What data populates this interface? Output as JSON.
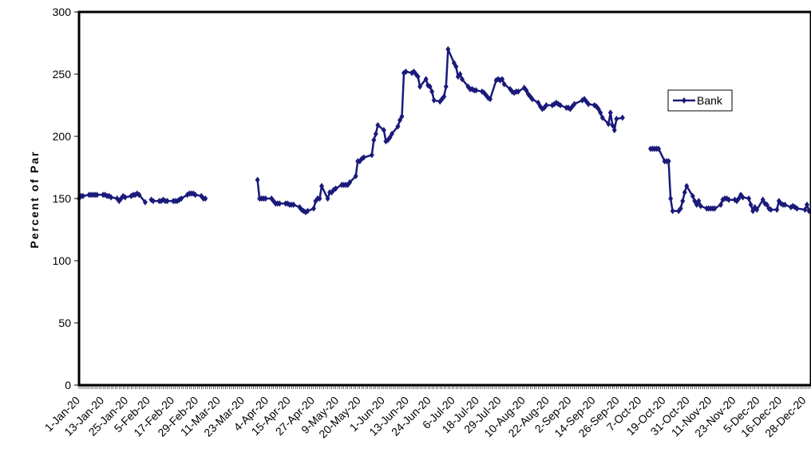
{
  "chart_data": {
    "type": "line",
    "ylabel": "Percent of Par",
    "xlabel": "",
    "ylim": [
      0,
      300
    ],
    "yticks": [
      0,
      50,
      100,
      150,
      200,
      250,
      300
    ],
    "xlim": [
      "2020-01-01",
      "2020-12-31"
    ],
    "xtick_labels": [
      "1-Jan-20",
      "13-Jan-20",
      "25-Jan-20",
      "5-Feb-20",
      "17-Feb-20",
      "29-Feb-20",
      "11-Mar-20",
      "23-Mar-20",
      "4-Apr-20",
      "15-Apr-20",
      "27-Apr-20",
      "9-May-20",
      "20-May-20",
      "1-Jun-20",
      "13-Jun-20",
      "24-Jun-20",
      "6-Jul-20",
      "18-Jul-20",
      "29-Jul-20",
      "10-Aug-20",
      "22-Aug-20",
      "2-Sep-20",
      "14-Sep-20",
      "26-Sep-20",
      "7-Oct-20",
      "19-Oct-20",
      "31-Oct-20",
      "11-Nov-20",
      "23-Nov-20",
      "5-Dec-20",
      "16-Dec-20",
      "28-Dec-20"
    ],
    "legend": {
      "position": "right",
      "entries": [
        "Bank"
      ]
    },
    "series": [
      {
        "name": "Bank",
        "color": "#1a1a7a",
        "segments": [
          [
            [
              "2020-01-01",
              150
            ],
            [
              "2020-01-02",
              152
            ],
            [
              "2020-01-03",
              152
            ],
            [
              "2020-01-06",
              153
            ],
            [
              "2020-01-07",
              153
            ],
            [
              "2020-01-08",
              153
            ],
            [
              "2020-01-09",
              153
            ],
            [
              "2020-01-10",
              153
            ],
            [
              "2020-01-13",
              153
            ],
            [
              "2020-01-14",
              153
            ],
            [
              "2020-01-15",
              152
            ],
            [
              "2020-01-16",
              152
            ],
            [
              "2020-01-17",
              151
            ],
            [
              "2020-01-20",
              150
            ],
            [
              "2020-01-21",
              148
            ],
            [
              "2020-01-22",
              150
            ],
            [
              "2020-01-23",
              152
            ],
            [
              "2020-01-24",
              151
            ],
            [
              "2020-01-27",
              152
            ],
            [
              "2020-01-28",
              153
            ],
            [
              "2020-01-29",
              153
            ],
            [
              "2020-01-30",
              154
            ],
            [
              "2020-01-31",
              153
            ],
            [
              "2020-02-03",
              147
            ]
          ],
          [
            [
              "2020-02-06",
              149
            ],
            [
              "2020-02-07",
              148
            ],
            [
              "2020-02-10",
              148
            ],
            [
              "2020-02-11",
              148
            ],
            [
              "2020-02-12",
              149
            ],
            [
              "2020-02-13",
              148
            ],
            [
              "2020-02-14",
              148
            ],
            [
              "2020-02-17",
              148
            ],
            [
              "2020-02-18",
              148
            ],
            [
              "2020-02-19",
              148
            ],
            [
              "2020-02-20",
              149
            ],
            [
              "2020-02-21",
              150
            ],
            [
              "2020-02-24",
              153
            ],
            [
              "2020-02-25",
              154
            ],
            [
              "2020-02-26",
              154
            ],
            [
              "2020-02-27",
              154
            ],
            [
              "2020-02-28",
              153
            ],
            [
              "2020-03-02",
              152
            ],
            [
              "2020-03-03",
              150
            ],
            [
              "2020-03-04",
              150
            ]
          ],
          [
            [
              "2020-03-30",
              165
            ],
            [
              "2020-03-31",
              150
            ],
            [
              "2020-04-01",
              150
            ],
            [
              "2020-04-02",
              150
            ],
            [
              "2020-04-03",
              150
            ],
            [
              "2020-04-06",
              150
            ],
            [
              "2020-04-07",
              148
            ],
            [
              "2020-04-08",
              146
            ],
            [
              "2020-04-09",
              146
            ],
            [
              "2020-04-10",
              146
            ],
            [
              "2020-04-13",
              146
            ],
            [
              "2020-04-14",
              146
            ],
            [
              "2020-04-15",
              145
            ],
            [
              "2020-04-16",
              145
            ],
            [
              "2020-04-17",
              145
            ],
            [
              "2020-04-20",
              143
            ],
            [
              "2020-04-21",
              141
            ],
            [
              "2020-04-22",
              140
            ],
            [
              "2020-04-23",
              139
            ],
            [
              "2020-04-24",
              140
            ],
            [
              "2020-04-27",
              142
            ],
            [
              "2020-04-28",
              148
            ],
            [
              "2020-04-29",
              150
            ],
            [
              "2020-04-30",
              150
            ],
            [
              "2020-05-01",
              160
            ],
            [
              "2020-05-04",
              150
            ],
            [
              "2020-05-05",
              155
            ],
            [
              "2020-05-06",
              155
            ],
            [
              "2020-05-07",
              157
            ],
            [
              "2020-05-08",
              158
            ],
            [
              "2020-05-11",
              161
            ],
            [
              "2020-05-12",
              161
            ],
            [
              "2020-05-13",
              161
            ],
            [
              "2020-05-14",
              161
            ],
            [
              "2020-05-15",
              163
            ],
            [
              "2020-05-18",
              168
            ],
            [
              "2020-05-19",
              180
            ],
            [
              "2020-05-20",
              180
            ],
            [
              "2020-05-21",
              182
            ],
            [
              "2020-05-22",
              183
            ],
            [
              "2020-05-26",
              185
            ],
            [
              "2020-05-27",
              197
            ],
            [
              "2020-05-28",
              202
            ],
            [
              "2020-05-29",
              209
            ],
            [
              "2020-06-01",
              205
            ],
            [
              "2020-06-02",
              196
            ],
            [
              "2020-06-03",
              197
            ],
            [
              "2020-06-04",
              199
            ],
            [
              "2020-06-05",
              202
            ],
            [
              "2020-06-08",
              208
            ],
            [
              "2020-06-09",
              213
            ],
            [
              "2020-06-10",
              216
            ],
            [
              "2020-06-11",
              251
            ],
            [
              "2020-06-12",
              252
            ],
            [
              "2020-06-15",
              251
            ],
            [
              "2020-06-16",
              252
            ],
            [
              "2020-06-17",
              250
            ],
            [
              "2020-06-18",
              248
            ],
            [
              "2020-06-19",
              240
            ],
            [
              "2020-06-22",
              246
            ],
            [
              "2020-06-23",
              241
            ],
            [
              "2020-06-24",
              240
            ],
            [
              "2020-06-25",
              236
            ],
            [
              "2020-06-26",
              229
            ],
            [
              "2020-06-29",
              228
            ],
            [
              "2020-06-30",
              230
            ],
            [
              "2020-07-01",
              232
            ],
            [
              "2020-07-02",
              240
            ],
            [
              "2020-07-03",
              270
            ],
            [
              "2020-07-06",
              259
            ],
            [
              "2020-07-07",
              256
            ],
            [
              "2020-07-08",
              248
            ],
            [
              "2020-07-09",
              250
            ],
            [
              "2020-07-10",
              246
            ],
            [
              "2020-07-13",
              240
            ],
            [
              "2020-07-14",
              238
            ],
            [
              "2020-07-15",
              238
            ],
            [
              "2020-07-16",
              237
            ],
            [
              "2020-07-17",
              237
            ],
            [
              "2020-07-20",
              236
            ],
            [
              "2020-07-21",
              235
            ],
            [
              "2020-07-22",
              233
            ],
            [
              "2020-07-23",
              231
            ],
            [
              "2020-07-24",
              230
            ],
            [
              "2020-07-27",
              245
            ],
            [
              "2020-07-28",
              246
            ],
            [
              "2020-07-29",
              245
            ],
            [
              "2020-07-30",
              246
            ],
            [
              "2020-07-31",
              242
            ],
            [
              "2020-08-03",
              238
            ],
            [
              "2020-08-04",
              236
            ],
            [
              "2020-08-05",
              235
            ],
            [
              "2020-08-06",
              236
            ],
            [
              "2020-08-07",
              236
            ],
            [
              "2020-08-10",
              239
            ],
            [
              "2020-08-11",
              237
            ],
            [
              "2020-08-12",
              234
            ],
            [
              "2020-08-13",
              232
            ],
            [
              "2020-08-14",
              230
            ],
            [
              "2020-08-17",
              227
            ],
            [
              "2020-08-18",
              224
            ],
            [
              "2020-08-19",
              222
            ],
            [
              "2020-08-20",
              223
            ],
            [
              "2020-08-21",
              225
            ],
            [
              "2020-08-24",
              225
            ],
            [
              "2020-08-25",
              226
            ],
            [
              "2020-08-26",
              227
            ],
            [
              "2020-08-27",
              226
            ],
            [
              "2020-08-28",
              225
            ],
            [
              "2020-08-31",
              223
            ],
            [
              "2020-09-01",
              223
            ],
            [
              "2020-09-02",
              222
            ],
            [
              "2020-09-03",
              224
            ],
            [
              "2020-09-04",
              226
            ],
            [
              "2020-09-08",
              229
            ],
            [
              "2020-09-09",
              230
            ],
            [
              "2020-09-10",
              228
            ],
            [
              "2020-09-11",
              226
            ],
            [
              "2020-09-14",
              225
            ],
            [
              "2020-09-15",
              224
            ],
            [
              "2020-09-16",
              222
            ],
            [
              "2020-09-17",
              219
            ],
            [
              "2020-09-18",
              215
            ],
            [
              "2020-09-21",
              210
            ],
            [
              "2020-09-22",
              219
            ],
            [
              "2020-09-23",
              209
            ],
            [
              "2020-09-24",
              205
            ],
            [
              "2020-09-25",
              214
            ],
            [
              "2020-09-28",
              215
            ]
          ],
          [
            [
              "2020-10-12",
              190
            ],
            [
              "2020-10-13",
              190
            ],
            [
              "2020-10-14",
              190
            ],
            [
              "2020-10-15",
              190
            ],
            [
              "2020-10-16",
              190
            ],
            [
              "2020-10-19",
              180
            ],
            [
              "2020-10-20",
              180
            ],
            [
              "2020-10-21",
              180
            ],
            [
              "2020-10-22",
              150
            ],
            [
              "2020-10-23",
              140
            ],
            [
              "2020-10-26",
              140
            ],
            [
              "2020-10-27",
              142
            ],
            [
              "2020-10-28",
              148
            ],
            [
              "2020-10-29",
              155
            ],
            [
              "2020-10-30",
              160
            ],
            [
              "2020-11-02",
              152
            ],
            [
              "2020-11-03",
              148
            ],
            [
              "2020-11-04",
              145
            ],
            [
              "2020-11-05",
              148
            ],
            [
              "2020-11-06",
              144
            ],
            [
              "2020-11-09",
              142
            ],
            [
              "2020-11-10",
              142
            ],
            [
              "2020-11-11",
              142
            ],
            [
              "2020-11-12",
              142
            ],
            [
              "2020-11-13",
              142
            ],
            [
              "2020-11-16",
              145
            ],
            [
              "2020-11-17",
              149
            ],
            [
              "2020-11-18",
              150
            ],
            [
              "2020-11-19",
              150
            ],
            [
              "2020-11-20",
              149
            ],
            [
              "2020-11-23",
              149
            ],
            [
              "2020-11-24",
              148
            ],
            [
              "2020-11-25",
              150
            ],
            [
              "2020-11-26",
              153
            ],
            [
              "2020-11-27",
              151
            ],
            [
              "2020-11-30",
              150
            ],
            [
              "2020-12-01",
              145
            ],
            [
              "2020-12-02",
              140
            ],
            [
              "2020-12-03",
              143
            ],
            [
              "2020-12-04",
              141
            ],
            [
              "2020-12-07",
              149
            ],
            [
              "2020-12-08",
              146
            ],
            [
              "2020-12-09",
              145
            ],
            [
              "2020-12-10",
              142
            ],
            [
              "2020-12-11",
              141
            ],
            [
              "2020-12-14",
              141
            ],
            [
              "2020-12-15",
              148
            ],
            [
              "2020-12-16",
              146
            ],
            [
              "2020-12-17",
              145
            ],
            [
              "2020-12-18",
              145
            ],
            [
              "2020-12-21",
              143
            ],
            [
              "2020-12-22",
              144
            ],
            [
              "2020-12-23",
              143
            ],
            [
              "2020-12-24",
              142
            ],
            [
              "2020-12-28",
              141
            ],
            [
              "2020-12-29",
              145
            ],
            [
              "2020-12-30",
              140
            ],
            [
              "2020-12-31",
              140
            ]
          ],
          [
            [
              "2020-12-31",
              140
            ]
          ]
        ]
      }
    ]
  }
}
